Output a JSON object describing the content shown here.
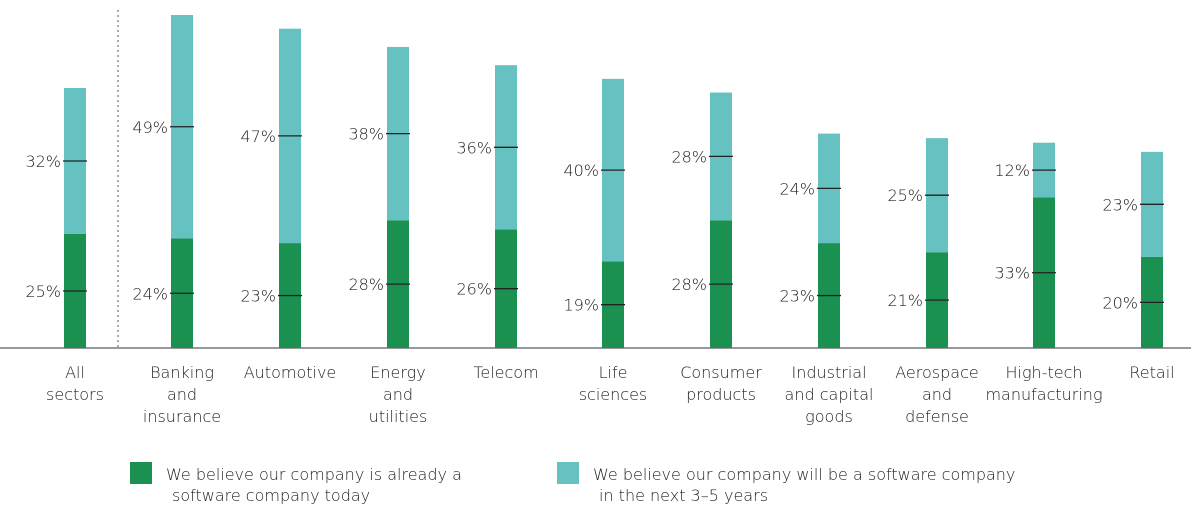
{
  "chart_data": {
    "type": "stacked-bar",
    "categories": [
      "All\nsectors",
      "Banking\nand\ninsurance",
      "Automotive",
      "Energy\nand\nutilities",
      "Telecom",
      "Life\nsciences",
      "Consumer\nproducts",
      "Industrial\nand capital\ngoods",
      "Aerospace\nand\ndefense",
      "High-tech\nmanufacturing",
      "Retail"
    ],
    "series": [
      {
        "name": "We believe our company is already a\nsoftware company today",
        "color": "#1a9150",
        "values": [
          25,
          24,
          23,
          28,
          26,
          19,
          28,
          23,
          21,
          33,
          20
        ]
      },
      {
        "name": "We believe our company will be a software company\nin the next 3–5 years",
        "color": "#66c2c0",
        "values": [
          32,
          49,
          47,
          38,
          36,
          40,
          28,
          24,
          25,
          12,
          23
        ]
      }
    ],
    "value_labels": [
      [
        "25%",
        "24%",
        "23%",
        "28%",
        "26%",
        "19%",
        "28%",
        "23%",
        "21%",
        "33%",
        "20%"
      ],
      [
        "32%",
        "49%",
        "47%",
        "38%",
        "36%",
        "40%",
        "28%",
        "24%",
        "25%",
        "12%",
        "23%"
      ]
    ]
  }
}
